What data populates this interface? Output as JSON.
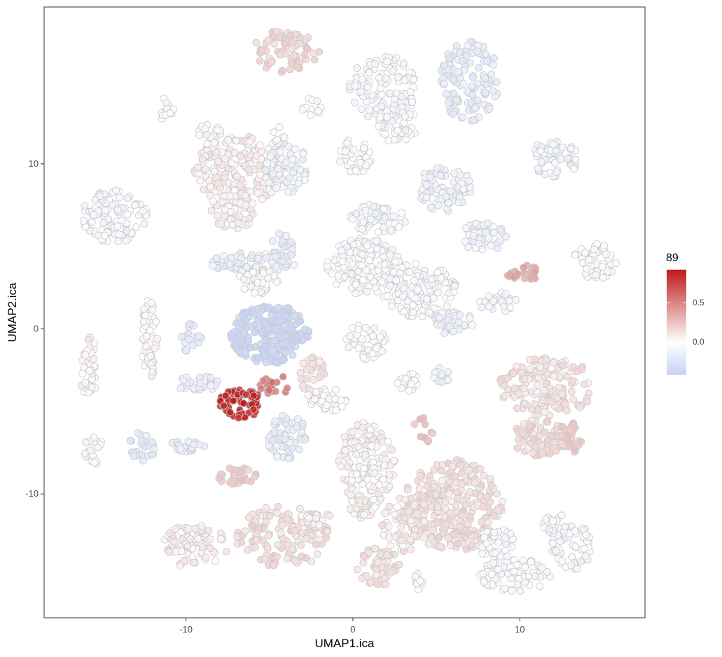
{
  "chart_data": {
    "type": "scatter",
    "xlabel": "UMAP1.ica",
    "ylabel": "UMAP2.ica",
    "xlim": [
      -18.5,
      17.5
    ],
    "ylim": [
      -17.5,
      19.5
    ],
    "xticks": [
      -10,
      0,
      10
    ],
    "xtick_labels": [
      "-10",
      "0",
      "10"
    ],
    "yticks": [
      -10,
      0,
      10
    ],
    "ytick_labels": [
      "-10",
      "0",
      "10"
    ],
    "grid": false,
    "panel_border": true,
    "legend": {
      "title": "89",
      "position": "right",
      "range": [
        -0.42,
        0.92
      ],
      "ticks": [
        0.0,
        0.5
      ],
      "tick_labels": [
        "0.0",
        "0.5"
      ],
      "low_color": "#c6d3f7",
      "mid_color": "#ffffff",
      "high_color": "#bd1a1a"
    },
    "point_style": {
      "stroke": "#c9c9c9",
      "opacity": 0.85
    },
    "clusters": [
      {
        "cx": -4.0,
        "cy": 16.8,
        "rx": 2.0,
        "ry": 1.3,
        "value": 0.18,
        "n": 70
      },
      {
        "cx": 1.8,
        "cy": 14.6,
        "rx": 2.0,
        "ry": 2.0,
        "value": -0.06,
        "n": 110
      },
      {
        "cx": 2.6,
        "cy": 12.4,
        "rx": 1.3,
        "ry": 1.1,
        "value": -0.04,
        "n": 50
      },
      {
        "cx": 7.0,
        "cy": 15.0,
        "rx": 1.8,
        "ry": 2.4,
        "value": -0.18,
        "n": 120
      },
      {
        "cx": -11.2,
        "cy": 13.3,
        "rx": 0.5,
        "ry": 0.7,
        "value": -0.05,
        "n": 14
      },
      {
        "cx": -2.5,
        "cy": 13.4,
        "rx": 0.6,
        "ry": 0.6,
        "value": -0.02,
        "n": 12
      },
      {
        "cx": 0.1,
        "cy": 10.4,
        "rx": 1.0,
        "ry": 1.1,
        "value": -0.03,
        "n": 40
      },
      {
        "cx": 12.0,
        "cy": 10.3,
        "rx": 1.5,
        "ry": 1.1,
        "value": -0.09,
        "n": 60
      },
      {
        "cx": -14.3,
        "cy": 6.8,
        "rx": 2.0,
        "ry": 1.6,
        "value": -0.07,
        "n": 100
      },
      {
        "cx": -6.8,
        "cy": 9.6,
        "rx": 2.7,
        "ry": 2.1,
        "value": 0.07,
        "n": 200
      },
      {
        "cx": -7.2,
        "cy": 7.2,
        "rx": 1.4,
        "ry": 1.2,
        "value": 0.05,
        "n": 60
      },
      {
        "cx": -4.0,
        "cy": 9.8,
        "rx": 1.3,
        "ry": 1.7,
        "value": -0.1,
        "n": 70
      },
      {
        "cx": -4.5,
        "cy": 11.6,
        "rx": 0.4,
        "ry": 0.7,
        "value": -0.05,
        "n": 12
      },
      {
        "cx": -8.6,
        "cy": 11.8,
        "rx": 0.8,
        "ry": 0.6,
        "value": 0.0,
        "n": 20
      },
      {
        "cx": -6.0,
        "cy": 4.0,
        "rx": 2.6,
        "ry": 0.6,
        "value": -0.14,
        "n": 70
      },
      {
        "cx": -4.2,
        "cy": 5.0,
        "rx": 0.7,
        "ry": 0.9,
        "value": -0.18,
        "n": 25
      },
      {
        "cx": -5.7,
        "cy": 2.9,
        "rx": 1.2,
        "ry": 0.8,
        "value": 0.02,
        "n": 40
      },
      {
        "cx": 5.5,
        "cy": 8.5,
        "rx": 1.6,
        "ry": 1.4,
        "value": -0.12,
        "n": 80
      },
      {
        "cx": 1.5,
        "cy": 6.7,
        "rx": 1.7,
        "ry": 0.9,
        "value": -0.07,
        "n": 60
      },
      {
        "cx": 0.6,
        "cy": 3.8,
        "rx": 2.2,
        "ry": 1.7,
        "value": -0.03,
        "n": 150
      },
      {
        "cx": 4.0,
        "cy": 2.3,
        "rx": 2.2,
        "ry": 1.7,
        "value": -0.05,
        "n": 130
      },
      {
        "cx": 6.0,
        "cy": 0.4,
        "rx": 1.2,
        "ry": 0.8,
        "value": -0.12,
        "n": 40
      },
      {
        "cx": 7.8,
        "cy": 5.5,
        "rx": 1.4,
        "ry": 1.0,
        "value": -0.1,
        "n": 50
      },
      {
        "cx": 8.7,
        "cy": 1.6,
        "rx": 1.2,
        "ry": 0.6,
        "value": -0.08,
        "n": 30
      },
      {
        "cx": 10.2,
        "cy": 3.4,
        "rx": 1.0,
        "ry": 0.5,
        "value": 0.38,
        "n": 25
      },
      {
        "cx": 14.5,
        "cy": 4.1,
        "rx": 1.3,
        "ry": 1.1,
        "value": -0.02,
        "n": 60
      },
      {
        "cx": -12.2,
        "cy": -0.5,
        "rx": 0.5,
        "ry": 2.5,
        "value": 0.02,
        "n": 50
      },
      {
        "cx": -15.8,
        "cy": -2.3,
        "rx": 0.6,
        "ry": 1.8,
        "value": 0.03,
        "n": 40
      },
      {
        "cx": -9.8,
        "cy": -0.5,
        "rx": 0.8,
        "ry": 0.9,
        "value": -0.18,
        "n": 20
      },
      {
        "cx": -5.0,
        "cy": -0.3,
        "rx": 2.4,
        "ry": 1.8,
        "value": -0.4,
        "n": 230
      },
      {
        "cx": -9.3,
        "cy": -3.3,
        "rx": 1.3,
        "ry": 0.5,
        "value": -0.15,
        "n": 30
      },
      {
        "cx": -6.7,
        "cy": -4.5,
        "rx": 1.3,
        "ry": 0.9,
        "value": 0.88,
        "n": 75
      },
      {
        "cx": -4.7,
        "cy": -3.4,
        "rx": 1.0,
        "ry": 0.6,
        "value": 0.55,
        "n": 18
      },
      {
        "cx": -2.4,
        "cy": -2.9,
        "rx": 0.8,
        "ry": 1.2,
        "value": 0.12,
        "n": 30
      },
      {
        "cx": -1.5,
        "cy": -4.3,
        "rx": 1.3,
        "ry": 0.7,
        "value": 0.0,
        "n": 30
      },
      {
        "cx": 0.8,
        "cy": -0.8,
        "rx": 1.3,
        "ry": 1.1,
        "value": -0.04,
        "n": 50
      },
      {
        "cx": 3.2,
        "cy": -3.2,
        "rx": 0.7,
        "ry": 0.6,
        "value": -0.03,
        "n": 20
      },
      {
        "cx": 5.3,
        "cy": -2.8,
        "rx": 0.6,
        "ry": 0.6,
        "value": -0.1,
        "n": 15
      },
      {
        "cx": 4.2,
        "cy": -6.0,
        "rx": 0.7,
        "ry": 1.0,
        "value": 0.28,
        "n": 10
      },
      {
        "cx": 11.6,
        "cy": -3.5,
        "rx": 2.9,
        "ry": 1.8,
        "value": 0.12,
        "n": 160
      },
      {
        "cx": 11.2,
        "cy": -6.6,
        "rx": 1.7,
        "ry": 1.1,
        "value": 0.16,
        "n": 70
      },
      {
        "cx": 13.0,
        "cy": -6.6,
        "rx": 0.7,
        "ry": 1.0,
        "value": 0.22,
        "n": 30
      },
      {
        "cx": -15.5,
        "cy": -7.3,
        "rx": 0.6,
        "ry": 0.9,
        "value": -0.02,
        "n": 20
      },
      {
        "cx": -12.6,
        "cy": -7.1,
        "rx": 0.8,
        "ry": 0.9,
        "value": -0.2,
        "n": 25
      },
      {
        "cx": -10.2,
        "cy": -7.1,
        "rx": 1.3,
        "ry": 0.4,
        "value": -0.17,
        "n": 20
      },
      {
        "cx": -4.0,
        "cy": -6.5,
        "rx": 1.2,
        "ry": 1.4,
        "value": -0.18,
        "n": 60
      },
      {
        "cx": 0.8,
        "cy": -8.2,
        "rx": 1.7,
        "ry": 2.6,
        "value": 0.04,
        "n": 150
      },
      {
        "cx": 0.6,
        "cy": -10.8,
        "rx": 0.8,
        "ry": 0.8,
        "value": 0.06,
        "n": 30
      },
      {
        "cx": -7.0,
        "cy": -8.9,
        "rx": 1.2,
        "ry": 0.5,
        "value": 0.22,
        "n": 30
      },
      {
        "cx": -4.2,
        "cy": -12.6,
        "rx": 2.8,
        "ry": 1.9,
        "value": 0.14,
        "n": 140
      },
      {
        "cx": -2.1,
        "cy": -11.5,
        "rx": 1.2,
        "ry": 0.4,
        "value": 0.05,
        "n": 20
      },
      {
        "cx": -9.5,
        "cy": -13.2,
        "rx": 2.0,
        "ry": 1.4,
        "value": 0.07,
        "n": 90
      },
      {
        "cx": 6.0,
        "cy": -10.7,
        "rx": 3.0,
        "ry": 2.8,
        "value": 0.14,
        "n": 260
      },
      {
        "cx": 3.0,
        "cy": -11.8,
        "rx": 1.3,
        "ry": 1.8,
        "value": 0.09,
        "n": 60
      },
      {
        "cx": 1.5,
        "cy": -14.4,
        "rx": 1.3,
        "ry": 1.2,
        "value": 0.12,
        "n": 60
      },
      {
        "cx": 3.8,
        "cy": -15.2,
        "rx": 0.5,
        "ry": 0.6,
        "value": 0.0,
        "n": 10
      },
      {
        "cx": 9.7,
        "cy": -14.9,
        "rx": 2.2,
        "ry": 1.0,
        "value": -0.04,
        "n": 80
      },
      {
        "cx": 8.6,
        "cy": -13.0,
        "rx": 1.1,
        "ry": 1.0,
        "value": -0.05,
        "n": 35
      },
      {
        "cx": 13.2,
        "cy": -13.2,
        "rx": 1.3,
        "ry": 1.4,
        "value": -0.06,
        "n": 60
      },
      {
        "cx": 12.1,
        "cy": -11.8,
        "rx": 0.8,
        "ry": 0.6,
        "value": -0.06,
        "n": 20
      }
    ]
  }
}
